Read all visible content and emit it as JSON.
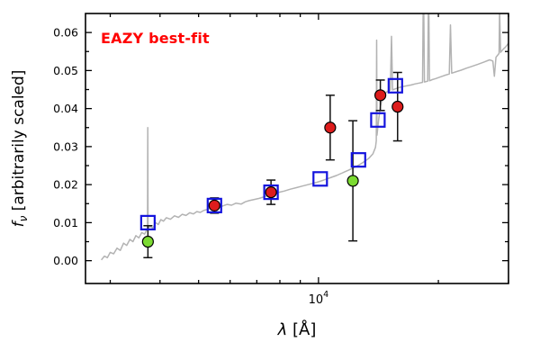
{
  "annotation": {
    "label": "EAZY best-fit",
    "color": "#ff0000"
  },
  "chart_data": {
    "type": "line",
    "title": "",
    "xlabel": "λ [Å]",
    "ylabel": "f_ν [arbitrarily scaled]",
    "xscale": "log",
    "xlim": [
      2600,
      30000
    ],
    "ylim": [
      -0.006,
      0.065
    ],
    "yticks": [
      0.0,
      0.01,
      0.02,
      0.03,
      0.04,
      0.05,
      0.06
    ],
    "y_minor": [
      0.005,
      0.015,
      0.025,
      0.035,
      0.045,
      0.055
    ],
    "x_major": [
      10000
    ],
    "x_major_label": {
      "base": "10",
      "exp": "4"
    },
    "x_minor": [
      3000,
      4000,
      5000,
      6000,
      7000,
      8000,
      9000,
      20000,
      30000
    ],
    "xlabel_parts": {
      "symbol": "λ",
      "unit": " [Å]"
    },
    "ylabel_parts": {
      "symbol": "f",
      "sub": "ν",
      "rest": " [arbitrarily scaled]"
    },
    "legend": "off",
    "grid": "off",
    "series": [
      {
        "name": "model-spectrum",
        "type": "line",
        "color": "#b3b3b3",
        "points": [
          [
            2850,
            0.0002
          ],
          [
            2900,
            0.0012
          ],
          [
            2950,
            0.0008
          ],
          [
            3000,
            0.0022
          ],
          [
            3060,
            0.0018
          ],
          [
            3120,
            0.0033
          ],
          [
            3180,
            0.0027
          ],
          [
            3240,
            0.0046
          ],
          [
            3300,
            0.004
          ],
          [
            3360,
            0.0056
          ],
          [
            3420,
            0.005
          ],
          [
            3480,
            0.0066
          ],
          [
            3540,
            0.006
          ],
          [
            3600,
            0.0074
          ],
          [
            3660,
            0.007
          ],
          [
            3700,
            0.008
          ],
          [
            3722,
            0.0086
          ],
          [
            3727,
            0.035
          ],
          [
            3733,
            0.0086
          ],
          [
            3780,
            0.009
          ],
          [
            3840,
            0.0086
          ],
          [
            3900,
            0.01
          ],
          [
            3960,
            0.0095
          ],
          [
            4020,
            0.0108
          ],
          [
            4080,
            0.0104
          ],
          [
            4150,
            0.0113
          ],
          [
            4250,
            0.0109
          ],
          [
            4350,
            0.0118
          ],
          [
            4450,
            0.0114
          ],
          [
            4550,
            0.0122
          ],
          [
            4650,
            0.0119
          ],
          [
            4750,
            0.0126
          ],
          [
            4850,
            0.0123
          ],
          [
            4950,
            0.0129
          ],
          [
            5050,
            0.0127
          ],
          [
            5150,
            0.0132
          ],
          [
            5300,
            0.0136
          ],
          [
            5450,
            0.014
          ],
          [
            5600,
            0.0138
          ],
          [
            5750,
            0.0144
          ],
          [
            5900,
            0.0148
          ],
          [
            6050,
            0.0146
          ],
          [
            6200,
            0.0151
          ],
          [
            6400,
            0.0149
          ],
          [
            6550,
            0.0155
          ],
          [
            6700,
            0.0158
          ],
          [
            6900,
            0.0161
          ],
          [
            7100,
            0.0164
          ],
          [
            7300,
            0.0168
          ],
          [
            7500,
            0.0172
          ],
          [
            7700,
            0.0175
          ],
          [
            7900,
            0.0179
          ],
          [
            8200,
            0.0183
          ],
          [
            8500,
            0.0188
          ],
          [
            8800,
            0.0192
          ],
          [
            9100,
            0.0196
          ],
          [
            9500,
            0.0201
          ],
          [
            9900,
            0.0206
          ],
          [
            10300,
            0.0212
          ],
          [
            10700,
            0.0218
          ],
          [
            11100,
            0.0224
          ],
          [
            11500,
            0.0231
          ],
          [
            11900,
            0.0238
          ],
          [
            12300,
            0.0245
          ],
          [
            12700,
            0.0253
          ],
          [
            13100,
            0.0262
          ],
          [
            13400,
            0.027
          ],
          [
            13700,
            0.0281
          ],
          [
            13900,
            0.0298
          ],
          [
            13970,
            0.0315
          ],
          [
            14000,
            0.058
          ],
          [
            14030,
            0.033
          ],
          [
            14150,
            0.0368
          ],
          [
            14300,
            0.0405
          ],
          [
            14450,
            0.0425
          ],
          [
            14600,
            0.0436
          ],
          [
            14800,
            0.0443
          ],
          [
            15000,
            0.0447
          ],
          [
            15150,
            0.0449
          ],
          [
            15250,
            0.059
          ],
          [
            15350,
            0.0449
          ],
          [
            15600,
            0.0452
          ],
          [
            15900,
            0.0455
          ],
          [
            16300,
            0.0458
          ],
          [
            16700,
            0.046
          ],
          [
            17100,
            0.0462
          ],
          [
            17500,
            0.0465
          ],
          [
            17900,
            0.0467
          ],
          [
            18250,
            0.0469
          ],
          [
            18350,
            0.075
          ],
          [
            18450,
            0.047
          ],
          [
            18800,
            0.0472
          ],
          [
            18900,
            0.073
          ],
          [
            19000,
            0.0473
          ],
          [
            19300,
            0.0476
          ],
          [
            19700,
            0.0479
          ],
          [
            20200,
            0.0483
          ],
          [
            20700,
            0.0487
          ],
          [
            21300,
            0.0491
          ],
          [
            21450,
            0.062
          ],
          [
            21600,
            0.0493
          ],
          [
            22200,
            0.0497
          ],
          [
            22800,
            0.0501
          ],
          [
            23500,
            0.0506
          ],
          [
            24300,
            0.0511
          ],
          [
            25100,
            0.0516
          ],
          [
            26000,
            0.0522
          ],
          [
            26900,
            0.0528
          ],
          [
            27400,
            0.0525
          ],
          [
            27650,
            0.0485
          ],
          [
            27900,
            0.0535
          ],
          [
            28400,
            0.0545
          ],
          [
            28500,
            0.066
          ],
          [
            28650,
            0.0548
          ],
          [
            29100,
            0.0556
          ],
          [
            29500,
            0.0562
          ],
          [
            30000,
            0.0572
          ]
        ]
      },
      {
        "name": "model-photometry",
        "type": "scatter",
        "marker": "open-square",
        "color": "#1414dd",
        "points": [
          [
            3730,
            0.01
          ],
          [
            5480,
            0.0145
          ],
          [
            7600,
            0.018
          ],
          [
            10100,
            0.0215
          ],
          [
            12600,
            0.0265
          ],
          [
            14100,
            0.037
          ],
          [
            15600,
            0.046
          ]
        ]
      },
      {
        "name": "observed-photometry",
        "type": "scatter",
        "marker": "circle",
        "color": "#dd1c1c",
        "points": [
          [
            5480,
            0.0145,
            0.002
          ],
          [
            7600,
            0.018,
            0.0032
          ],
          [
            10700,
            0.035,
            0.0085
          ],
          [
            14300,
            0.0435,
            0.004
          ],
          [
            15800,
            0.0405,
            0.009
          ]
        ]
      },
      {
        "name": "flagged-photometry",
        "type": "scatter",
        "marker": "circle",
        "color": "#7cdb32",
        "points": [
          [
            3730,
            0.005,
            0.0042
          ],
          [
            12200,
            0.021,
            0.0158
          ]
        ]
      }
    ]
  }
}
